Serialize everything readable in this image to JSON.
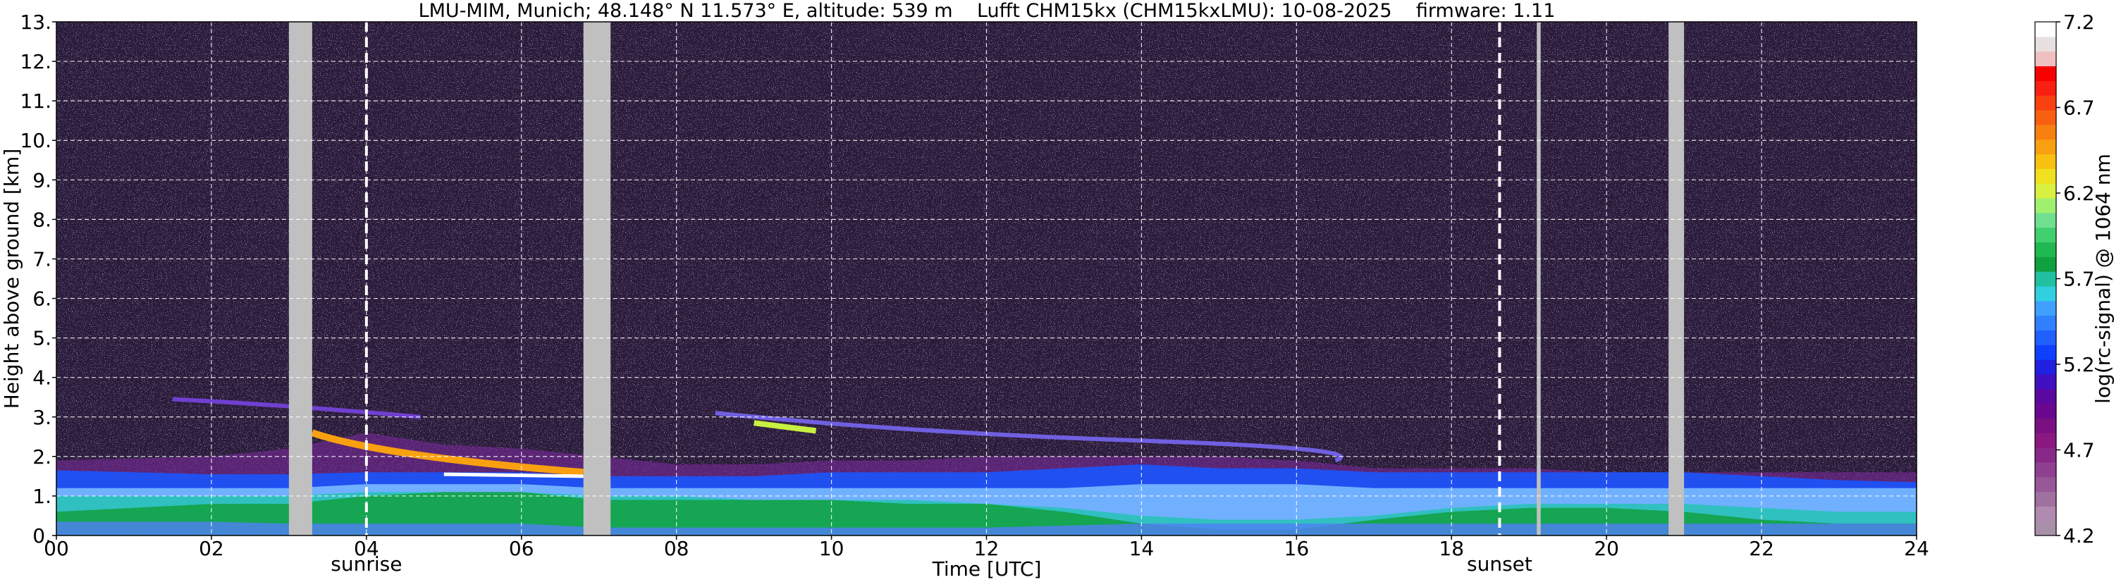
{
  "chart_data": {
    "type": "heatmap",
    "title": "LMU-MIM, Munich; 48.148° N 11.573° E, altitude: 539 m    Lufft CHM15kx (CHM15kxLMU): 10-08-2025    firmware: 1.11",
    "xlabel": "Time [UTC]",
    "ylabel": "Height above ground [km]",
    "xlim": [
      0,
      24
    ],
    "ylim": [
      0,
      13
    ],
    "x_ticks": [
      "00",
      "02",
      "04",
      "06",
      "08",
      "10",
      "12",
      "14",
      "16",
      "18",
      "20",
      "22",
      "24"
    ],
    "y_ticks": [
      "0.",
      "1.",
      "2.",
      "3.",
      "4.",
      "5.",
      "6.",
      "7.",
      "8.",
      "9.",
      "10.",
      "11.",
      "12.",
      "13."
    ],
    "grid": true,
    "colorbar": {
      "label": "log(rc-signal) @ 1064 nm",
      "range": [
        4.2,
        7.2
      ],
      "ticks": [
        "4.2",
        "4.7",
        "5.2",
        "5.7",
        "6.2",
        "6.7",
        "7.2"
      ],
      "colors": [
        "#a890a8",
        "#b08ab0",
        "#a070a0",
        "#985898",
        "#904090",
        "#882888",
        "#8a1880",
        "#7a1082",
        "#6a0890",
        "#5a08a0",
        "#4010c0",
        "#2020e0",
        "#1040ff",
        "#2060ff",
        "#3080ff",
        "#40a0ff",
        "#30d0e0",
        "#20c0a0",
        "#10a040",
        "#20b850",
        "#40d070",
        "#70e090",
        "#a0f070",
        "#d8f040",
        "#f0e020",
        "#f8c010",
        "#f8a010",
        "#f88010",
        "#f86010",
        "#f84010",
        "#f82010",
        "#f80000",
        "#f0c0c0",
        "#e8e0e0",
        "#ffffff"
      ]
    },
    "gaps_utc": [
      [
        3.0,
        3.3
      ],
      [
        6.8,
        7.15
      ],
      [
        19.1,
        19.15
      ],
      [
        20.8,
        21.0
      ]
    ],
    "events": [
      {
        "label": "sunrise",
        "time_utc": 4.0
      },
      {
        "label": "sunset",
        "time_utc": 18.62
      }
    ],
    "colors": {
      "background_signal": "#2a1a3a",
      "noise": "#b0a8e0",
      "gap": "#c0c0c0"
    }
  }
}
